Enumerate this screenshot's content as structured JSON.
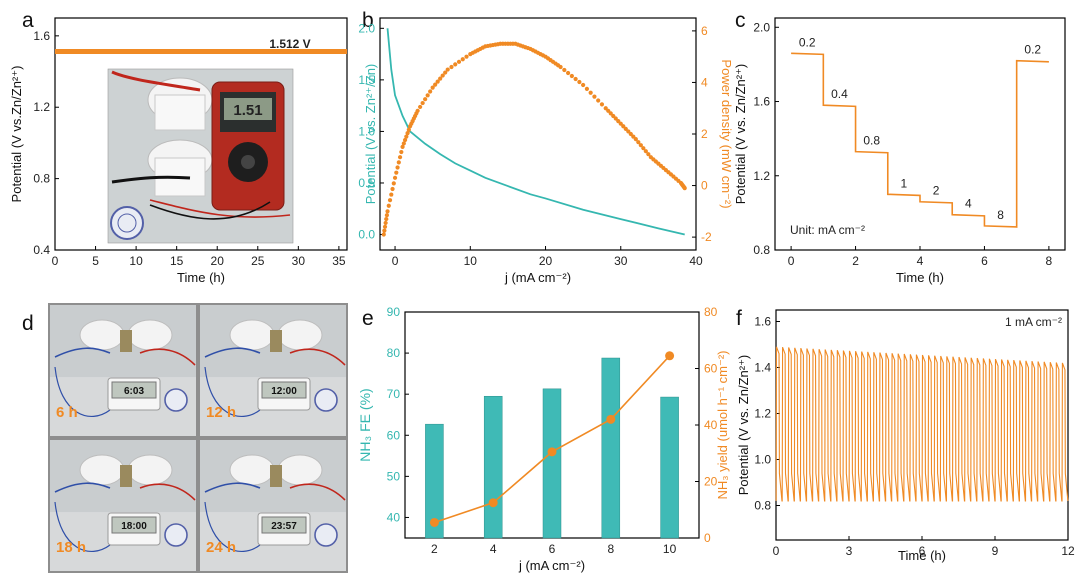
{
  "colors": {
    "orange": "#f08a24",
    "teal": "#35b7b0",
    "teal_bar": "#3fbab6",
    "axis": "#000000"
  },
  "panels": {
    "a": {
      "letter": "a",
      "chart_data": {
        "type": "line",
        "series": [
          {
            "x": [
              0,
              36
            ],
            "y": [
              1.512,
              1.512
            ]
          }
        ],
        "annotation": "1.512 V",
        "xlabel": "Time (h)",
        "ylabel": "Potential (V vs.Zn/Zn²⁺)",
        "xlim": [
          0,
          36
        ],
        "ylim": [
          0.4,
          1.7
        ],
        "xticks": [
          0,
          5,
          10,
          15,
          20,
          25,
          30,
          35
        ],
        "yticks": [
          0.4,
          0.8,
          1.2,
          1.6
        ]
      },
      "inset_photo": {
        "multimeter_reading": "1.51"
      }
    },
    "b": {
      "letter": "b",
      "chart_data": {
        "type": "line",
        "xlabel": "j (mA cm⁻²)",
        "ylabel_left": "Potential (V vs. Zn²⁺/Zn)",
        "ylabel_right": "Power density (mW cm⁻²)",
        "xlim": [
          -2,
          40
        ],
        "ylim_left": [
          -0.15,
          2.1
        ],
        "ylim_right": [
          -2.5,
          6.5
        ],
        "xticks": [
          0,
          10,
          20,
          30,
          40
        ],
        "yticks_left": [
          0.0,
          0.5,
          1.0,
          1.5,
          2.0
        ],
        "yticks_right": [
          -2,
          0,
          2,
          4,
          6
        ],
        "series": [
          {
            "axis": "left",
            "color": "teal",
            "x": [
              -1,
              -0.5,
              0,
              1,
              2,
              4,
              6,
              8,
              10,
              12,
              15,
              18,
              20,
              25,
              30,
              35,
              38.5
            ],
            "y": [
              2.0,
              1.6,
              1.35,
              1.15,
              1.0,
              0.88,
              0.78,
              0.69,
              0.62,
              0.55,
              0.47,
              0.39,
              0.35,
              0.24,
              0.15,
              0.06,
              0.0
            ]
          },
          {
            "axis": "right",
            "color": "orange",
            "x": [
              -1.5,
              -1,
              0,
              1,
              2,
              3,
              5,
              7,
              10,
              12,
              14,
              16,
              18,
              20,
              22,
              25,
              28,
              30,
              32,
              34,
              36,
              38,
              38.5
            ],
            "y": [
              -1.9,
              -1.0,
              0.3,
              1.5,
              2.3,
              2.9,
              3.8,
              4.5,
              5.1,
              5.4,
              5.5,
              5.5,
              5.3,
              5.0,
              4.6,
              3.9,
              3.0,
              2.4,
              1.8,
              1.1,
              0.6,
              0.1,
              -0.1
            ]
          }
        ]
      }
    },
    "c": {
      "letter": "c",
      "chart_data": {
        "type": "line",
        "xlabel": "Time (h)",
        "ylabel": "Potential (V vs. Zn/Zn²⁺)",
        "xlim": [
          -0.5,
          8.5
        ],
        "ylim": [
          0.8,
          2.05
        ],
        "xticks": [
          0,
          2,
          4,
          6,
          8
        ],
        "yticks": [
          0.8,
          1.2,
          1.6,
          2.0
        ],
        "note": "Unit: mA cm⁻²",
        "steps": [
          {
            "label": "0.2",
            "t0": 0,
            "t1": 1,
            "v": 1.86
          },
          {
            "label": "0.4",
            "t0": 1,
            "t1": 2,
            "v": 1.58
          },
          {
            "label": "0.8",
            "t0": 2,
            "t1": 3,
            "v": 1.33
          },
          {
            "label": "1",
            "t0": 3,
            "t1": 4,
            "v": 1.1
          },
          {
            "label": "2",
            "t0": 4,
            "t1": 5,
            "v": 1.06
          },
          {
            "label": "4",
            "t0": 5,
            "t1": 6,
            "v": 0.99
          },
          {
            "label": "8",
            "t0": 6,
            "t1": 7,
            "v": 0.93
          },
          {
            "label": "0.2",
            "t0": 7,
            "t1": 8,
            "v": 1.82
          }
        ]
      }
    },
    "d": {
      "letter": "d",
      "photos": [
        {
          "label": "6 h",
          "timer": "6:03"
        },
        {
          "label": "12 h",
          "timer": "12:00"
        },
        {
          "label": "18 h",
          "timer": "18:00"
        },
        {
          "label": "24 h",
          "timer": "23:57"
        }
      ]
    },
    "e": {
      "letter": "e",
      "chart_data": {
        "type": "bar",
        "xlabel": "j (mA cm⁻²)",
        "ylabel_left": "NH₃ FE (%)",
        "ylabel_right": "NH₃ yield (umol h⁻¹ cm⁻²)",
        "categories": [
          2,
          4,
          6,
          8,
          10
        ],
        "xlim": [
          1,
          11
        ],
        "ylim_left": [
          35,
          90
        ],
        "ylim_right": [
          0,
          80
        ],
        "yticks_left": [
          40,
          50,
          60,
          70,
          80,
          90
        ],
        "yticks_right": [
          0,
          20,
          40,
          60,
          80
        ],
        "series": [
          {
            "type": "bar",
            "axis": "left",
            "values": [
              62.7,
              69.5,
              71.3,
              78.8,
              69.3
            ]
          },
          {
            "type": "line",
            "axis": "right",
            "values": [
              5.5,
              12.5,
              30.5,
              42.0,
              64.5
            ]
          }
        ]
      }
    },
    "f": {
      "letter": "f",
      "chart_data": {
        "type": "line",
        "xlabel": "Time (h)",
        "ylabel": "Potential (V vs. Zn/Zn²⁺)",
        "xlim": [
          0,
          12
        ],
        "ylim": [
          0.65,
          1.65
        ],
        "xticks": [
          0,
          3,
          6,
          9,
          12
        ],
        "yticks": [
          0.8,
          1.0,
          1.2,
          1.4,
          1.6
        ],
        "note": "1 mA cm⁻²",
        "cycles": 48,
        "upper_start": 1.49,
        "upper_end": 1.42,
        "lower_start": 0.82,
        "lower_end": 0.82
      }
    }
  }
}
